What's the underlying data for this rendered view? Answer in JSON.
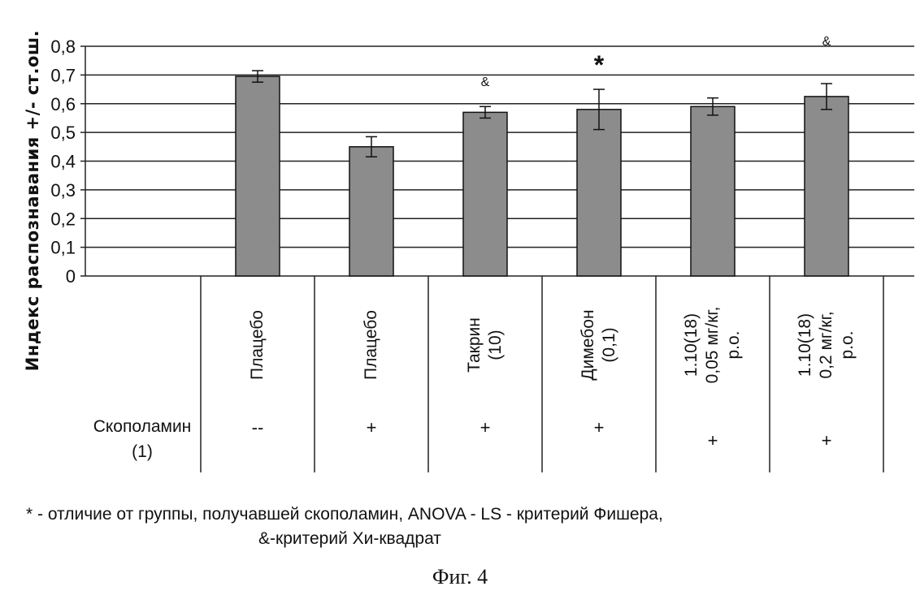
{
  "chart_data": {
    "type": "bar",
    "ylabel": "Индекс распознавания +/- ст.ош.",
    "ylim": [
      0,
      0.8
    ],
    "yticks": [
      "0",
      "0,1",
      "0,2",
      "0,3",
      "0,4",
      "0,5",
      "0,6",
      "0,7",
      "0,8"
    ],
    "categories": [
      "Плацебо",
      "Плацебо",
      "Такрин\n(10)",
      "Димебон\n(0,1)",
      "1.10(18)\n0,05 мг/кг,\nр.о.",
      "1.10(18)\n0,2 мг/кг,\nр.о."
    ],
    "values": [
      0.695,
      0.45,
      0.57,
      0.58,
      0.59,
      0.625
    ],
    "errors": [
      0.02,
      0.035,
      0.02,
      0.07,
      0.03,
      0.045
    ],
    "significance": [
      "",
      "",
      "&",
      "*",
      "",
      "&"
    ],
    "scopolamine_row": {
      "label": "Скополамин\n(1)",
      "values": [
        "--",
        "+",
        "+",
        "+",
        "+",
        "+"
      ]
    },
    "grid": true,
    "bar_color": "#8c8c8c"
  },
  "footnote": {
    "line1": "* - отличие от группы, получавшей скополамин, ANOVA - LS - критерий Фишера,",
    "line2": "&-критерий Хи-квадрат"
  },
  "caption": "Фиг. 4"
}
